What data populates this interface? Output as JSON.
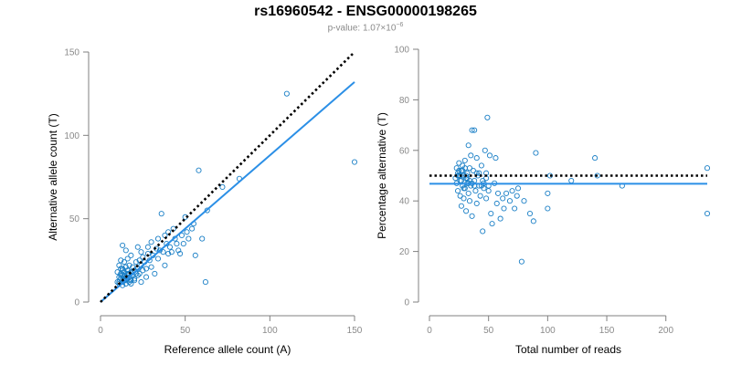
{
  "title": "rs16960542 - ENSG00000198265",
  "subtitle": {
    "prefix": "p-value: 1.07×10",
    "exponent": "−6"
  },
  "colors": {
    "points": "#1a7fc6",
    "fit_line": "#2b8fe6",
    "reference_line": "#000000",
    "axis": "#808080",
    "tick_label": "#8a8a8a"
  },
  "chart_data": [
    {
      "type": "scatter",
      "title": "",
      "xlabel": "Reference allele count (A)",
      "ylabel": "Alternative allele count (T)",
      "xlim": [
        0,
        150
      ],
      "ylim": [
        0,
        150
      ],
      "xticks": [
        0,
        50,
        100,
        150
      ],
      "yticks": [
        0,
        50,
        100,
        150
      ],
      "grid": false,
      "fit_line": {
        "x": [
          0,
          150
        ],
        "y": [
          0,
          132
        ]
      },
      "reference_line": {
        "style": "dotted",
        "x": [
          0,
          150
        ],
        "y": [
          0,
          150
        ]
      },
      "points": {
        "x": [
          10,
          10,
          11,
          11,
          11,
          12,
          12,
          12,
          12,
          13,
          13,
          13,
          13,
          14,
          14,
          14,
          15,
          15,
          15,
          16,
          16,
          16,
          17,
          17,
          17,
          18,
          18,
          18,
          19,
          19,
          20,
          20,
          21,
          21,
          22,
          22,
          23,
          23,
          24,
          24,
          25,
          25,
          26,
          27,
          28,
          28,
          29,
          30,
          30,
          31,
          32,
          33,
          34,
          34,
          35,
          36,
          37,
          38,
          38,
          39,
          40,
          40,
          41,
          42,
          43,
          44,
          45,
          46,
          47,
          48,
          49,
          50,
          51,
          52,
          54,
          55,
          56,
          58,
          60,
          62,
          63,
          72,
          82,
          110,
          150,
          11,
          12,
          13,
          14,
          15,
          16,
          17,
          18,
          19,
          12,
          13,
          14,
          15,
          16,
          18,
          20,
          22,
          24,
          27
        ],
        "y": [
          12,
          18,
          11,
          15,
          22,
          14,
          20,
          25,
          17,
          12,
          16,
          19,
          34,
          13,
          18,
          24,
          15,
          21,
          31,
          14,
          19,
          26,
          12,
          17,
          22,
          13,
          18,
          28,
          16,
          21,
          14,
          19,
          17,
          24,
          20,
          33,
          17,
          25,
          22,
          30,
          19,
          27,
          24,
          20,
          29,
          33,
          25,
          21,
          36,
          28,
          17,
          32,
          26,
          38,
          31,
          53,
          30,
          40,
          22,
          35,
          29,
          42,
          33,
          30,
          44,
          38,
          35,
          31,
          29,
          40,
          35,
          51,
          42,
          38,
          44,
          47,
          28,
          79,
          38,
          12,
          55,
          69,
          74,
          125,
          84,
          12,
          16,
          20,
          14,
          11,
          17,
          15,
          13,
          18,
          14,
          10,
          16,
          13,
          19,
          11,
          13,
          16,
          12,
          15
        ]
      }
    },
    {
      "type": "scatter",
      "title": "",
      "xlabel": "Total number of reads",
      "ylabel": "Percentage alternative (T)",
      "xlim": [
        0,
        235
      ],
      "ylim": [
        0,
        100
      ],
      "xticks": [
        0,
        50,
        100,
        150,
        200
      ],
      "yticks": [
        0,
        20,
        40,
        60,
        80,
        100
      ],
      "grid": false,
      "fit_line": {
        "x": [
          0,
          235
        ],
        "y": [
          46.8,
          46.8
        ]
      },
      "reference_line": {
        "style": "dotted",
        "x": [
          0,
          235
        ],
        "y": [
          50,
          50
        ]
      },
      "points": {
        "x": [
          22,
          23,
          23,
          24,
          24,
          25,
          25,
          26,
          26,
          27,
          27,
          28,
          28,
          29,
          29,
          30,
          30,
          31,
          31,
          32,
          32,
          33,
          33,
          34,
          34,
          35,
          35,
          36,
          36,
          37,
          38,
          38,
          39,
          40,
          40,
          41,
          42,
          43,
          44,
          45,
          45,
          46,
          47,
          48,
          48,
          49,
          50,
          51,
          52,
          53,
          55,
          56,
          57,
          58,
          60,
          62,
          63,
          65,
          68,
          70,
          72,
          74,
          75,
          78,
          80,
          85,
          88,
          90,
          100,
          100,
          102,
          120,
          140,
          142,
          163,
          235,
          235,
          25,
          27,
          29,
          31,
          33,
          26,
          30,
          34,
          38,
          42,
          46,
          50,
          24,
          28,
          32,
          36,
          40,
          44,
          48
        ],
        "y": [
          49,
          53,
          47,
          51,
          44,
          55,
          50,
          42,
          48,
          52,
          38,
          54,
          46,
          50,
          41,
          56,
          45,
          49,
          36,
          51,
          47,
          62,
          43,
          53,
          40,
          58,
          46,
          68,
          34,
          52,
          68,
          48,
          44,
          57,
          39,
          50,
          46,
          42,
          54,
          28,
          48,
          45,
          60,
          51,
          41,
          73,
          46,
          58,
          35,
          31,
          47,
          57,
          39,
          43,
          33,
          41,
          37,
          43,
          40,
          44,
          37,
          42,
          45,
          16,
          40,
          35,
          32,
          59,
          43,
          37,
          50,
          48,
          57,
          50,
          46,
          53,
          35,
          52,
          48,
          45,
          50,
          47,
          50,
          53,
          48,
          46,
          51,
          47,
          44,
          50,
          52,
          49,
          47,
          51,
          46,
          49
        ]
      }
    }
  ]
}
